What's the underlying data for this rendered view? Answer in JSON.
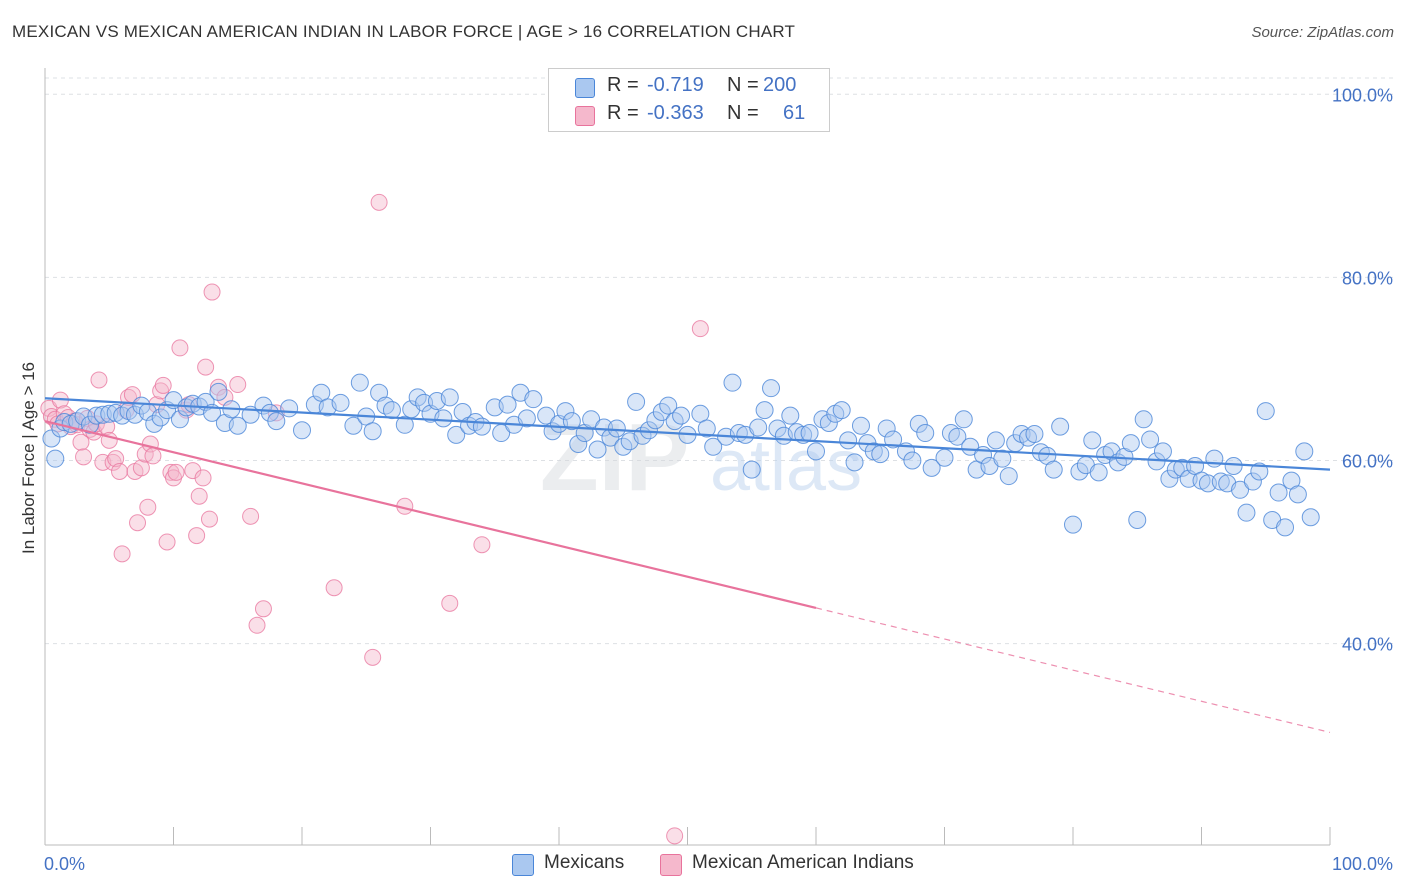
{
  "header": {
    "title": "MEXICAN VS MEXICAN AMERICAN INDIAN IN LABOR FORCE | AGE > 16 CORRELATION CHART",
    "source": "Source: ZipAtlas.com"
  },
  "legend": {
    "rows": [
      {
        "r_label": "R =",
        "r_value": "-0.719",
        "n_label": "N =",
        "n_value": "200"
      },
      {
        "r_label": "R =",
        "r_value": "-0.363",
        "n_label": "N =",
        "n_value": "61"
      }
    ]
  },
  "bottom_legend": {
    "series1": "Mexicans",
    "series2": "Mexican American Indians"
  },
  "watermark": {
    "zip": "ZIP",
    "atlas": "atlas"
  },
  "colors": {
    "blue": "#4a86d8",
    "blue_fill": "#aac8f0",
    "pink": "#e8739c",
    "pink_fill": "#f5b8cc",
    "axis_text": "#4472c4"
  },
  "chart_data": {
    "type": "scatter",
    "title": "MEXICAN VS MEXICAN AMERICAN INDIAN IN LABOR FORCE | AGE > 16 CORRELATION CHART",
    "ylabel": "In Labor Force | Age > 16",
    "xlabel": "",
    "xlim": [
      0,
      100
    ],
    "ylim": [
      18,
      102
    ],
    "y_ticks": [
      40,
      60,
      80,
      100
    ],
    "y_tick_labels": [
      "40.0%",
      "60.0%",
      "80.0%",
      "100.0%"
    ],
    "x_tick_labels": [
      "0.0%",
      "100.0%"
    ],
    "grid": "horizontal dashed",
    "legend_position": "top-center",
    "series": [
      {
        "name": "Mexicans",
        "color": "#4a86d8",
        "trend": {
          "x": [
            0,
            100
          ],
          "y": [
            66.8,
            59.0
          ]
        },
        "points": [
          [
            0.5,
            62.4
          ],
          [
            0.8,
            60.2
          ],
          [
            1.2,
            63.5
          ],
          [
            1.5,
            64.2
          ],
          [
            2.0,
            64.0
          ],
          [
            2.5,
            64.3
          ],
          [
            3.0,
            64.8
          ],
          [
            3.5,
            63.9
          ],
          [
            4.0,
            64.9
          ],
          [
            4.5,
            65.0
          ],
          [
            5.0,
            65.1
          ],
          [
            5.5,
            65.2
          ],
          [
            6.0,
            64.9
          ],
          [
            6.5,
            65.4
          ],
          [
            7.0,
            65.0
          ],
          [
            7.5,
            66.0
          ],
          [
            8.0,
            65.3
          ],
          [
            8.5,
            64.0
          ],
          [
            9.0,
            64.7
          ],
          [
            9.5,
            65.5
          ],
          [
            10.0,
            66.6
          ],
          [
            10.5,
            64.5
          ],
          [
            11.0,
            65.8
          ],
          [
            11.5,
            66.2
          ],
          [
            12.0,
            65.9
          ],
          [
            12.5,
            66.4
          ],
          [
            13.0,
            65.2
          ],
          [
            13.5,
            67.5
          ],
          [
            14.0,
            64.1
          ],
          [
            14.5,
            65.6
          ],
          [
            15.0,
            63.8
          ],
          [
            16.0,
            65.0
          ],
          [
            17.0,
            66.0
          ],
          [
            17.5,
            65.2
          ],
          [
            18.0,
            64.3
          ],
          [
            19.0,
            65.7
          ],
          [
            20.0,
            63.3
          ],
          [
            21.0,
            66.1
          ],
          [
            21.5,
            67.4
          ],
          [
            22.0,
            65.8
          ],
          [
            23.0,
            66.3
          ],
          [
            24.0,
            63.8
          ],
          [
            24.5,
            68.5
          ],
          [
            25.0,
            64.8
          ],
          [
            25.5,
            63.2
          ],
          [
            26.0,
            67.4
          ],
          [
            26.5,
            66.0
          ],
          [
            27.0,
            65.5
          ],
          [
            28.0,
            63.9
          ],
          [
            28.5,
            65.6
          ],
          [
            29.0,
            66.9
          ],
          [
            29.5,
            66.3
          ],
          [
            30.0,
            65.1
          ],
          [
            30.5,
            66.5
          ],
          [
            31.0,
            64.6
          ],
          [
            31.5,
            66.9
          ],
          [
            32.0,
            62.8
          ],
          [
            32.5,
            65.3
          ],
          [
            33.0,
            63.8
          ],
          [
            33.5,
            64.2
          ],
          [
            34.0,
            63.7
          ],
          [
            35.0,
            65.8
          ],
          [
            35.5,
            63.0
          ],
          [
            36.0,
            66.1
          ],
          [
            36.5,
            63.9
          ],
          [
            37.0,
            67.4
          ],
          [
            37.5,
            64.6
          ],
          [
            38.0,
            66.7
          ],
          [
            39.0,
            64.9
          ],
          [
            39.5,
            63.2
          ],
          [
            40.0,
            64.0
          ],
          [
            40.5,
            65.4
          ],
          [
            41.0,
            64.3
          ],
          [
            41.5,
            61.8
          ],
          [
            42.0,
            63.0
          ],
          [
            42.5,
            64.5
          ],
          [
            43.0,
            61.2
          ],
          [
            43.5,
            63.6
          ],
          [
            44.0,
            62.5
          ],
          [
            44.5,
            63.5
          ],
          [
            45.0,
            61.5
          ],
          [
            45.5,
            62.1
          ],
          [
            46.0,
            66.4
          ],
          [
            46.5,
            62.7
          ],
          [
            47.0,
            63.3
          ],
          [
            47.5,
            64.4
          ],
          [
            48.0,
            65.3
          ],
          [
            48.5,
            66.0
          ],
          [
            49.0,
            64.3
          ],
          [
            49.5,
            64.9
          ],
          [
            50.0,
            62.8
          ],
          [
            51.0,
            65.1
          ],
          [
            51.5,
            63.5
          ],
          [
            52.0,
            61.5
          ],
          [
            53.0,
            62.6
          ],
          [
            53.5,
            68.5
          ],
          [
            54.0,
            63.0
          ],
          [
            54.5,
            62.8
          ],
          [
            55.0,
            59.0
          ],
          [
            55.5,
            63.6
          ],
          [
            56.0,
            65.5
          ],
          [
            56.5,
            67.9
          ],
          [
            57.0,
            63.5
          ],
          [
            57.5,
            62.7
          ],
          [
            58.0,
            64.9
          ],
          [
            58.5,
            63.1
          ],
          [
            59.0,
            62.8
          ],
          [
            59.5,
            63.0
          ],
          [
            60.0,
            61.0
          ],
          [
            60.5,
            64.5
          ],
          [
            61.0,
            64.1
          ],
          [
            61.5,
            65.1
          ],
          [
            62.0,
            65.5
          ],
          [
            62.5,
            62.2
          ],
          [
            63.0,
            59.8
          ],
          [
            63.5,
            63.8
          ],
          [
            64.0,
            61.9
          ],
          [
            64.5,
            61.0
          ],
          [
            65.0,
            60.7
          ],
          [
            65.5,
            63.5
          ],
          [
            66.0,
            62.3
          ],
          [
            67.0,
            61.0
          ],
          [
            67.5,
            60.0
          ],
          [
            68.0,
            64.0
          ],
          [
            68.5,
            63.0
          ],
          [
            69.0,
            59.2
          ],
          [
            70.0,
            60.3
          ],
          [
            70.5,
            63.0
          ],
          [
            71.0,
            62.6
          ],
          [
            71.5,
            64.5
          ],
          [
            72.0,
            61.5
          ],
          [
            72.5,
            59.0
          ],
          [
            73.0,
            60.6
          ],
          [
            73.5,
            59.4
          ],
          [
            74.0,
            62.2
          ],
          [
            74.5,
            60.2
          ],
          [
            75.0,
            58.3
          ],
          [
            75.5,
            61.9
          ],
          [
            76.0,
            62.9
          ],
          [
            76.5,
            62.5
          ],
          [
            77.0,
            62.9
          ],
          [
            77.5,
            60.9
          ],
          [
            78.0,
            60.5
          ],
          [
            78.5,
            59.0
          ],
          [
            79.0,
            63.7
          ],
          [
            80.0,
            53.0
          ],
          [
            80.5,
            58.8
          ],
          [
            81.0,
            59.5
          ],
          [
            81.5,
            62.2
          ],
          [
            82.0,
            58.7
          ],
          [
            82.5,
            60.6
          ],
          [
            83.0,
            61.0
          ],
          [
            83.5,
            59.8
          ],
          [
            84.0,
            60.4
          ],
          [
            84.5,
            61.9
          ],
          [
            85.0,
            53.5
          ],
          [
            85.5,
            64.5
          ],
          [
            86.0,
            62.3
          ],
          [
            86.5,
            59.9
          ],
          [
            87.0,
            61.0
          ],
          [
            87.5,
            58.0
          ],
          [
            88.0,
            59.0
          ],
          [
            88.5,
            59.2
          ],
          [
            89.0,
            58.0
          ],
          [
            89.5,
            59.4
          ],
          [
            90.0,
            57.8
          ],
          [
            90.5,
            57.5
          ],
          [
            91.0,
            60.2
          ],
          [
            91.5,
            57.7
          ],
          [
            92.0,
            57.5
          ],
          [
            92.5,
            59.4
          ],
          [
            93.0,
            56.8
          ],
          [
            93.5,
            54.3
          ],
          [
            94.0,
            57.7
          ],
          [
            94.5,
            58.8
          ],
          [
            95.0,
            65.4
          ],
          [
            95.5,
            53.5
          ],
          [
            96.0,
            56.5
          ],
          [
            96.5,
            52.7
          ],
          [
            97.0,
            57.8
          ],
          [
            97.5,
            56.3
          ],
          [
            98.0,
            61.0
          ],
          [
            98.5,
            53.8
          ]
        ]
      },
      {
        "name": "Mexican American Indians",
        "color": "#e8739c",
        "trend": {
          "x": [
            0,
            60
          ],
          "y": [
            64.3,
            43.9
          ]
        },
        "trend_dashed": {
          "x": [
            60,
            100
          ],
          "y": [
            43.9,
            30.3
          ]
        },
        "points": [
          [
            0.3,
            65.7
          ],
          [
            0.5,
            64.8
          ],
          [
            0.8,
            64.5
          ],
          [
            1.0,
            64.0
          ],
          [
            1.2,
            66.6
          ],
          [
            1.5,
            65.1
          ],
          [
            1.8,
            64.7
          ],
          [
            2.0,
            63.7
          ],
          [
            2.3,
            64.3
          ],
          [
            2.5,
            63.9
          ],
          [
            2.8,
            62.0
          ],
          [
            3.0,
            60.4
          ],
          [
            3.3,
            64.6
          ],
          [
            3.5,
            63.4
          ],
          [
            3.8,
            63.1
          ],
          [
            4.0,
            64.0
          ],
          [
            4.2,
            68.8
          ],
          [
            4.5,
            59.8
          ],
          [
            4.8,
            63.7
          ],
          [
            5.0,
            62.2
          ],
          [
            5.3,
            59.8
          ],
          [
            5.5,
            60.2
          ],
          [
            5.8,
            58.8
          ],
          [
            6.0,
            49.8
          ],
          [
            6.3,
            65.5
          ],
          [
            6.5,
            66.9
          ],
          [
            6.8,
            67.2
          ],
          [
            7.0,
            58.8
          ],
          [
            7.2,
            53.2
          ],
          [
            7.5,
            59.2
          ],
          [
            7.8,
            60.7
          ],
          [
            8.0,
            54.9
          ],
          [
            8.2,
            61.8
          ],
          [
            8.4,
            60.5
          ],
          [
            8.7,
            66.1
          ],
          [
            9.0,
            67.6
          ],
          [
            9.2,
            68.2
          ],
          [
            9.5,
            51.1
          ],
          [
            9.8,
            58.7
          ],
          [
            10.0,
            58.1
          ],
          [
            10.2,
            58.7
          ],
          [
            10.5,
            72.3
          ],
          [
            11.0,
            65.5
          ],
          [
            11.2,
            66.1
          ],
          [
            11.5,
            58.9
          ],
          [
            11.8,
            51.8
          ],
          [
            12.0,
            56.1
          ],
          [
            12.3,
            58.1
          ],
          [
            12.5,
            70.2
          ],
          [
            12.8,
            53.6
          ],
          [
            13.0,
            78.4
          ],
          [
            13.5,
            68.0
          ],
          [
            14.0,
            66.9
          ],
          [
            15.0,
            68.3
          ],
          [
            16.0,
            53.9
          ],
          [
            16.5,
            42.0
          ],
          [
            17.0,
            43.8
          ],
          [
            18.0,
            65.2
          ],
          [
            22.5,
            46.1
          ],
          [
            25.5,
            38.5
          ],
          [
            26.0,
            88.2
          ],
          [
            28.0,
            55.0
          ],
          [
            31.5,
            44.4
          ],
          [
            34.0,
            50.8
          ],
          [
            49.0,
            19.0
          ],
          [
            51.0,
            74.4
          ]
        ]
      }
    ]
  }
}
